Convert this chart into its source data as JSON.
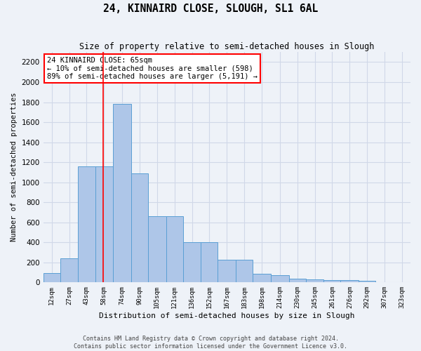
{
  "title": "24, KINNAIRD CLOSE, SLOUGH, SL1 6AL",
  "subtitle": "Size of property relative to semi-detached houses in Slough",
  "xlabel": "Distribution of semi-detached houses by size in Slough",
  "ylabel": "Number of semi-detached properties",
  "bin_labels": [
    "12sqm",
    "27sqm",
    "43sqm",
    "58sqm",
    "74sqm",
    "90sqm",
    "105sqm",
    "121sqm",
    "136sqm",
    "152sqm",
    "167sqm",
    "183sqm",
    "198sqm",
    "214sqm",
    "230sqm",
    "245sqm",
    "261sqm",
    "276sqm",
    "292sqm",
    "307sqm",
    "323sqm"
  ],
  "bar_values": [
    90,
    240,
    1160,
    1160,
    1780,
    1090,
    660,
    660,
    400,
    400,
    230,
    230,
    85,
    75,
    40,
    30,
    25,
    20,
    15,
    5,
    5
  ],
  "bar_color": "#aec6e8",
  "bar_edge_color": "#5a9fd4",
  "grid_color": "#d0d8e8",
  "background_color": "#eef2f8",
  "property_line_x": 65,
  "property_line_color": "red",
  "annotation_text": "24 KINNAIRD CLOSE: 65sqm\n← 10% of semi-detached houses are smaller (598)\n89% of semi-detached houses are larger (5,191) →",
  "annotation_box_color": "white",
  "annotation_box_edge_color": "red",
  "ylim": [
    0,
    2300
  ],
  "yticks": [
    0,
    200,
    400,
    600,
    800,
    1000,
    1200,
    1400,
    1600,
    1800,
    2000,
    2200
  ],
  "bin_edges_sqm": [
    12,
    27,
    43,
    58,
    74,
    90,
    105,
    121,
    136,
    152,
    167,
    183,
    198,
    214,
    230,
    245,
    261,
    276,
    292,
    307,
    323,
    338
  ]
}
